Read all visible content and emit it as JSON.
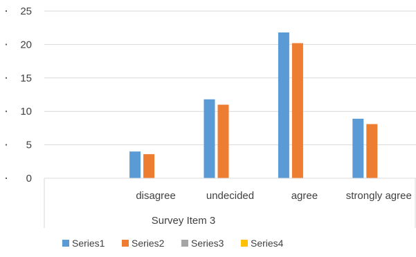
{
  "chart_data": {
    "type": "bar",
    "categories": [
      "",
      "disagree",
      "undecided",
      "agree",
      "strongly agree"
    ],
    "series": [
      {
        "name": "Series1",
        "values": [
          0,
          4,
          11.8,
          21.8,
          8.9
        ],
        "color": "#5b9bd5"
      },
      {
        "name": "Series2",
        "values": [
          0,
          3.6,
          11,
          20.2,
          8.1
        ],
        "color": "#ed7d31"
      },
      {
        "name": "Series3",
        "values": [
          0,
          0,
          0,
          0,
          0
        ],
        "color": "#a5a5a5"
      },
      {
        "name": "Series4",
        "values": [
          0,
          0,
          0,
          0,
          0
        ],
        "color": "#ffc000"
      }
    ],
    "group_label": "Survey Item 3",
    "ylim": [
      0,
      25
    ],
    "yticks": [
      "0",
      "5",
      "10",
      "15",
      "20",
      "25"
    ],
    "grid": true,
    "legend_position": "bottom"
  }
}
